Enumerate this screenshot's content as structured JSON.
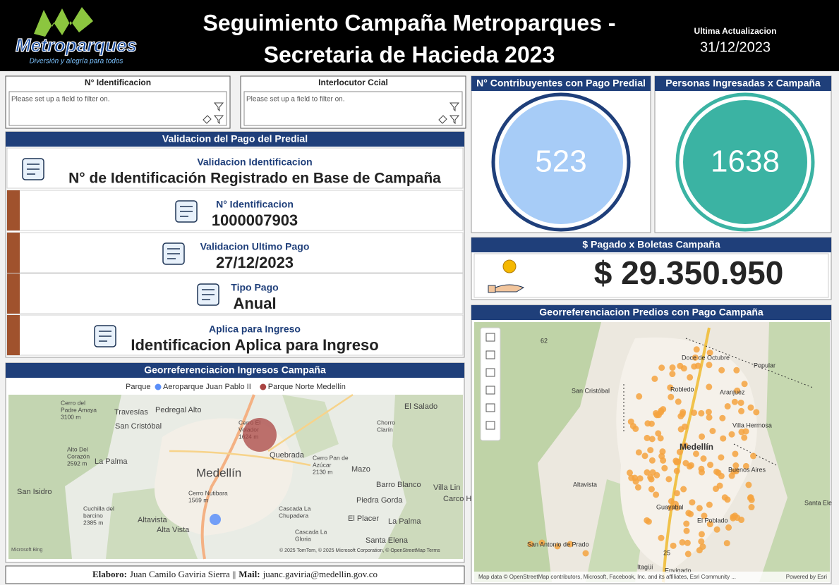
{
  "header": {
    "logo_name": "Metroparques",
    "logo_tagline": "Diversión y alegría para todos",
    "title_lines": [
      "Seguimiento Campaña Metroparques -",
      "Secretaria de Hacieda 2023"
    ],
    "update_label": "Ultima Actualizacion",
    "update_date": "31/12/2023"
  },
  "filters": [
    {
      "title": "N° Identificacion",
      "placeholder": "Please set up a field to filter on."
    },
    {
      "title": "Interlocutor Ccial",
      "placeholder": "Please set up a field to filter on."
    }
  ],
  "validation": {
    "title": "Validacion del Pago del Predial",
    "rows": [
      {
        "label": "Validacion Identificacion",
        "value": "N° de Identificación Registrado en Base de Campaña"
      },
      {
        "label": "N° Identificacion",
        "value": "1000007903"
      },
      {
        "label": "Validacion Ultimo Pago",
        "value": "27/12/2023"
      },
      {
        "label": "Tipo Pago",
        "value": "Anual"
      },
      {
        "label": "Aplica para Ingreso",
        "value": "Identificacion Aplica para Ingreso"
      }
    ]
  },
  "kpis": [
    {
      "title": "N° Contribuyentes con Pago Predial",
      "value": "523"
    },
    {
      "title": "Personas Ingresadas x Campaña",
      "value": "1638"
    }
  ],
  "payment": {
    "title": "$ Pagado x Boletas Campaña",
    "value": "$ 29.350.950"
  },
  "map_ingresos": {
    "title": "Georreferenciacion Ingresos Campaña",
    "legend_title": "Parque",
    "legend": [
      {
        "name": "Aeroparque Juan Pablo II",
        "color": "#5b8ff9"
      },
      {
        "name": "Parque Norte Medellín",
        "color": "#a94442"
      }
    ],
    "labels": [
      [
        "Cerro del",
        "Padre Amaya",
        "3100 m"
      ],
      [
        "Travesías"
      ],
      [
        "Pedregal Alto"
      ],
      [
        "El Salado"
      ],
      [
        "San Cristóbal"
      ],
      [
        "Cerro El",
        "Volador",
        "1624 m"
      ],
      [
        "Chorro",
        "Clarín"
      ],
      [
        "Alto Del",
        "Corazón",
        "2592 m"
      ],
      [
        "La Palma"
      ],
      [
        "Quebrada"
      ],
      [
        "Cerro Pan de",
        "Azúcar",
        "2130 m"
      ],
      [
        "Medellín"
      ],
      [
        "Mazo"
      ],
      [
        "San Isidro"
      ],
      [
        "Barro Blanco"
      ],
      [
        "Villa Lin"
      ],
      [
        "Cerro Nutibara",
        "1569 m"
      ],
      [
        "Piedra Gorda"
      ],
      [
        "Carco Hor"
      ],
      [
        "Cuchilla del",
        "barcino",
        "2385 m"
      ],
      [
        "Altavista"
      ],
      [
        "Alta Vista"
      ],
      [
        "Cascada La",
        "Chupadera"
      ],
      [
        "El Placer"
      ],
      [
        "La Palma"
      ],
      [
        "Cascada La",
        "Gloria"
      ],
      [
        "Santa Elena"
      ]
    ],
    "attribution": "© 2025 TomTom, © 2025 Microsoft Corporation, © OpenStreetMap  Terms",
    "provider": "Microsoft Bing"
  },
  "map_predios": {
    "title": "Georreferenciacion Predios con Pago Campaña",
    "labels": [
      "Doce de Octubre",
      "Popular",
      "San Cristóbal",
      "Robledo",
      "Aranjuez",
      "Villa Hermosa",
      "Medellín",
      "Buenos Aires",
      "Altavista",
      "El Poblado",
      "Santa Ele",
      "Guayabal",
      "San Antonio de Prado",
      "Itagüí",
      "Envigado",
      "62",
      "25"
    ],
    "attribution": "Map data © OpenStreetMap contributors, Microsoft, Facebook, Inc. and its affiliates, Esri Community ...",
    "powered": "Powered by Esri"
  },
  "footer": {
    "elaboro_label": "Elaboro:",
    "elaboro": "Juan Camilo Gaviria Sierra ||",
    "mail_label": "Mail:",
    "mail": "juanc.gaviria@medellin.gov.co"
  }
}
